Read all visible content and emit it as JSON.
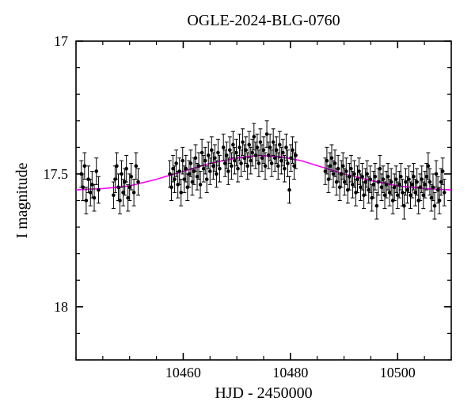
{
  "title": "OGLE-2024-BLG-0760",
  "xlabel": "HJD - 2450000",
  "ylabel": "I magnitude",
  "xlim": [
    10440,
    10510
  ],
  "ylim": [
    18.2,
    17.0
  ],
  "xticks_major": [
    10460,
    10480,
    10500
  ],
  "xticks_minor_step": 5,
  "yticks_major": [
    17,
    17.5,
    18
  ],
  "yticks_minor_step": 0.1,
  "title_fontsize": 20,
  "label_fontsize": 20,
  "tick_fontsize": 18,
  "background_color": "#ffffff",
  "model_color": "#ff00ff",
  "point_color": "#000000",
  "errorbar_color": "#000000",
  "point_radius": 2.3,
  "errorbar_capwidth": 5,
  "model_curve": [
    [
      10440,
      17.56
    ],
    [
      10445,
      17.555
    ],
    [
      10450,
      17.545
    ],
    [
      10455,
      17.52
    ],
    [
      10460,
      17.49
    ],
    [
      10465,
      17.46
    ],
    [
      10470,
      17.44
    ],
    [
      10474,
      17.43
    ],
    [
      10478,
      17.435
    ],
    [
      10482,
      17.45
    ],
    [
      10486,
      17.475
    ],
    [
      10490,
      17.5
    ],
    [
      10495,
      17.525
    ],
    [
      10500,
      17.545
    ],
    [
      10505,
      17.555
    ],
    [
      10510,
      17.56
    ]
  ],
  "data_points": [
    [
      10441.0,
      17.5,
      0.05
    ],
    [
      10441.3,
      17.55,
      0.05
    ],
    [
      10441.6,
      17.47,
      0.05
    ],
    [
      10441.9,
      17.6,
      0.05
    ],
    [
      10442.3,
      17.52,
      0.05
    ],
    [
      10442.7,
      17.57,
      0.05
    ],
    [
      10443.0,
      17.54,
      0.05
    ],
    [
      10443.4,
      17.59,
      0.05
    ],
    [
      10443.8,
      17.49,
      0.05
    ],
    [
      10444.2,
      17.56,
      0.05
    ],
    [
      10447.0,
      17.58,
      0.05
    ],
    [
      10447.3,
      17.52,
      0.05
    ],
    [
      10447.6,
      17.47,
      0.05
    ],
    [
      10447.9,
      17.55,
      0.05
    ],
    [
      10448.2,
      17.6,
      0.05
    ],
    [
      10448.5,
      17.5,
      0.05
    ],
    [
      10448.8,
      17.57,
      0.05
    ],
    [
      10449.1,
      17.53,
      0.05
    ],
    [
      10449.4,
      17.48,
      0.05
    ],
    [
      10449.7,
      17.59,
      0.05
    ],
    [
      10450.0,
      17.55,
      0.05
    ],
    [
      10450.3,
      17.51,
      0.05
    ],
    [
      10450.8,
      17.57,
      0.05
    ],
    [
      10451.2,
      17.47,
      0.05
    ],
    [
      10451.6,
      17.53,
      0.05
    ],
    [
      10457.5,
      17.5,
      0.05
    ],
    [
      10457.8,
      17.55,
      0.05
    ],
    [
      10458.1,
      17.48,
      0.05
    ],
    [
      10458.4,
      17.52,
      0.05
    ],
    [
      10458.7,
      17.46,
      0.05
    ],
    [
      10459.0,
      17.54,
      0.05
    ],
    [
      10459.3,
      17.49,
      0.05
    ],
    [
      10459.6,
      17.57,
      0.05
    ],
    [
      10459.9,
      17.45,
      0.05
    ],
    [
      10460.2,
      17.52,
      0.05
    ],
    [
      10460.5,
      17.48,
      0.05
    ],
    [
      10460.8,
      17.55,
      0.05
    ],
    [
      10461.1,
      17.5,
      0.05
    ],
    [
      10461.4,
      17.46,
      0.05
    ],
    [
      10461.7,
      17.53,
      0.05
    ],
    [
      10462.0,
      17.49,
      0.05
    ],
    [
      10462.3,
      17.44,
      0.05
    ],
    [
      10462.6,
      17.51,
      0.05
    ],
    [
      10462.9,
      17.47,
      0.05
    ],
    [
      10463.2,
      17.54,
      0.05
    ],
    [
      10463.5,
      17.42,
      0.05
    ],
    [
      10463.8,
      17.48,
      0.05
    ],
    [
      10464.1,
      17.45,
      0.05
    ],
    [
      10464.4,
      17.52,
      0.05
    ],
    [
      10464.7,
      17.43,
      0.05
    ],
    [
      10465.0,
      17.49,
      0.05
    ],
    [
      10465.3,
      17.41,
      0.05
    ],
    [
      10465.6,
      17.47,
      0.05
    ],
    [
      10465.9,
      17.44,
      0.05
    ],
    [
      10466.2,
      17.5,
      0.05
    ],
    [
      10466.5,
      17.42,
      0.05
    ],
    [
      10466.8,
      17.48,
      0.05
    ],
    [
      10467.5,
      17.4,
      0.05
    ],
    [
      10467.8,
      17.46,
      0.05
    ],
    [
      10468.1,
      17.43,
      0.05
    ],
    [
      10468.4,
      17.49,
      0.05
    ],
    [
      10468.7,
      17.41,
      0.05
    ],
    [
      10469.0,
      17.47,
      0.05
    ],
    [
      10469.3,
      17.39,
      0.05
    ],
    [
      10469.6,
      17.45,
      0.05
    ],
    [
      10469.9,
      17.42,
      0.05
    ],
    [
      10470.2,
      17.48,
      0.05
    ],
    [
      10470.5,
      17.4,
      0.05
    ],
    [
      10470.8,
      17.46,
      0.05
    ],
    [
      10471.1,
      17.38,
      0.05
    ],
    [
      10471.4,
      17.44,
      0.05
    ],
    [
      10471.7,
      17.41,
      0.05
    ],
    [
      10472.0,
      17.47,
      0.05
    ],
    [
      10472.3,
      17.39,
      0.05
    ],
    [
      10472.6,
      17.45,
      0.05
    ],
    [
      10472.9,
      17.42,
      0.05
    ],
    [
      10473.2,
      17.36,
      0.05
    ],
    [
      10473.5,
      17.43,
      0.05
    ],
    [
      10473.8,
      17.4,
      0.05
    ],
    [
      10474.1,
      17.46,
      0.05
    ],
    [
      10474.4,
      17.38,
      0.05
    ],
    [
      10474.7,
      17.44,
      0.05
    ],
    [
      10475.0,
      17.41,
      0.05
    ],
    [
      10475.3,
      17.47,
      0.05
    ],
    [
      10475.6,
      17.35,
      0.05
    ],
    [
      10475.9,
      17.43,
      0.05
    ],
    [
      10476.2,
      17.4,
      0.05
    ],
    [
      10476.5,
      17.46,
      0.05
    ],
    [
      10476.8,
      17.38,
      0.05
    ],
    [
      10477.1,
      17.44,
      0.05
    ],
    [
      10477.4,
      17.41,
      0.05
    ],
    [
      10477.7,
      17.47,
      0.05
    ],
    [
      10478.0,
      17.39,
      0.05
    ],
    [
      10478.3,
      17.45,
      0.05
    ],
    [
      10478.6,
      17.42,
      0.05
    ],
    [
      10478.9,
      17.48,
      0.05
    ],
    [
      10479.2,
      17.4,
      0.05
    ],
    [
      10479.5,
      17.46,
      0.05
    ],
    [
      10479.8,
      17.56,
      0.05
    ],
    [
      10480.1,
      17.44,
      0.05
    ],
    [
      10480.4,
      17.41,
      0.05
    ],
    [
      10480.7,
      17.47,
      0.05
    ],
    [
      10481.0,
      17.43,
      0.05
    ],
    [
      10486.5,
      17.49,
      0.05
    ],
    [
      10486.8,
      17.45,
      0.05
    ],
    [
      10487.1,
      17.52,
      0.05
    ],
    [
      10487.4,
      17.47,
      0.05
    ],
    [
      10487.7,
      17.44,
      0.05
    ],
    [
      10488.0,
      17.5,
      0.05
    ],
    [
      10488.3,
      17.46,
      0.05
    ],
    [
      10488.6,
      17.53,
      0.05
    ],
    [
      10488.9,
      17.48,
      0.05
    ],
    [
      10489.2,
      17.55,
      0.05
    ],
    [
      10489.5,
      17.5,
      0.05
    ],
    [
      10489.8,
      17.47,
      0.05
    ],
    [
      10490.1,
      17.53,
      0.05
    ],
    [
      10490.4,
      17.49,
      0.05
    ],
    [
      10490.7,
      17.56,
      0.05
    ],
    [
      10491.0,
      17.51,
      0.05
    ],
    [
      10491.3,
      17.48,
      0.05
    ],
    [
      10491.6,
      17.54,
      0.05
    ],
    [
      10491.9,
      17.5,
      0.05
    ],
    [
      10492.2,
      17.57,
      0.05
    ],
    [
      10492.5,
      17.52,
      0.05
    ],
    [
      10492.8,
      17.49,
      0.05
    ],
    [
      10493.1,
      17.55,
      0.05
    ],
    [
      10493.4,
      17.51,
      0.05
    ],
    [
      10493.7,
      17.58,
      0.05
    ],
    [
      10494.0,
      17.53,
      0.05
    ],
    [
      10494.3,
      17.5,
      0.05
    ],
    [
      10494.6,
      17.56,
      0.05
    ],
    [
      10494.9,
      17.52,
      0.05
    ],
    [
      10495.2,
      17.59,
      0.05
    ],
    [
      10495.5,
      17.54,
      0.05
    ],
    [
      10495.8,
      17.51,
      0.05
    ],
    [
      10496.1,
      17.62,
      0.05
    ],
    [
      10496.4,
      17.53,
      0.05
    ],
    [
      10496.7,
      17.48,
      0.05
    ],
    [
      10497.0,
      17.55,
      0.05
    ],
    [
      10497.3,
      17.52,
      0.05
    ],
    [
      10497.6,
      17.58,
      0.05
    ],
    [
      10497.9,
      17.54,
      0.05
    ],
    [
      10498.2,
      17.51,
      0.05
    ],
    [
      10498.5,
      17.57,
      0.05
    ],
    [
      10498.8,
      17.53,
      0.05
    ],
    [
      10499.1,
      17.6,
      0.05
    ],
    [
      10499.4,
      17.55,
      0.05
    ],
    [
      10499.7,
      17.52,
      0.05
    ],
    [
      10500.0,
      17.58,
      0.05
    ],
    [
      10500.3,
      17.54,
      0.05
    ],
    [
      10500.6,
      17.51,
      0.05
    ],
    [
      10500.9,
      17.57,
      0.05
    ],
    [
      10501.2,
      17.62,
      0.05
    ],
    [
      10501.5,
      17.53,
      0.05
    ],
    [
      10501.8,
      17.56,
      0.05
    ],
    [
      10502.1,
      17.52,
      0.05
    ],
    [
      10502.4,
      17.58,
      0.05
    ],
    [
      10502.7,
      17.54,
      0.05
    ],
    [
      10503.0,
      17.51,
      0.05
    ],
    [
      10503.3,
      17.57,
      0.05
    ],
    [
      10503.6,
      17.53,
      0.05
    ],
    [
      10503.9,
      17.6,
      0.05
    ],
    [
      10504.2,
      17.55,
      0.05
    ],
    [
      10504.5,
      17.52,
      0.05
    ],
    [
      10504.8,
      17.58,
      0.05
    ],
    [
      10505.1,
      17.54,
      0.05
    ],
    [
      10505.4,
      17.51,
      0.05
    ],
    [
      10505.7,
      17.47,
      0.05
    ],
    [
      10506.0,
      17.53,
      0.05
    ],
    [
      10506.3,
      17.59,
      0.05
    ],
    [
      10506.6,
      17.55,
      0.05
    ],
    [
      10506.9,
      17.62,
      0.05
    ],
    [
      10507.2,
      17.5,
      0.05
    ],
    [
      10507.5,
      17.56,
      0.05
    ],
    [
      10507.8,
      17.6,
      0.05
    ],
    [
      10508.1,
      17.53,
      0.05
    ],
    [
      10508.4,
      17.49,
      0.05
    ],
    [
      10508.7,
      17.57,
      0.05
    ]
  ]
}
